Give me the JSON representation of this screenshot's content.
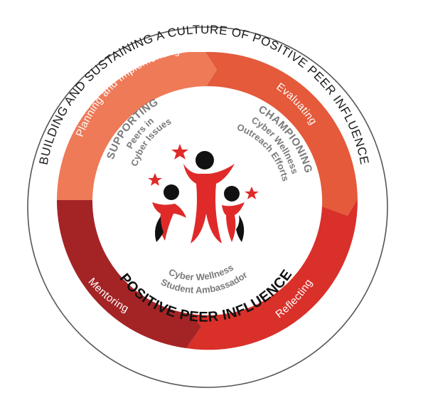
{
  "outer_ring": {
    "label": "BUILDING AND SUSTAINING A CULTURE OF POSITIVE PEER INFLUENCE"
  },
  "cycle": {
    "segments": [
      {
        "label": "Planning and Implementing",
        "color": "#EE7A58"
      },
      {
        "label": "Evaluating",
        "color": "#E45A3A"
      },
      {
        "label": "Reflecting",
        "color": "#D9302A"
      },
      {
        "label": "Mentoring",
        "color": "#A42426"
      }
    ]
  },
  "center": {
    "supporting": {
      "heading": "SUPPORTING",
      "lines": [
        "Peers in",
        "Cyber Issues"
      ]
    },
    "championing": {
      "heading": "CHAMPIONING",
      "lines": [
        "Cyber Wellness",
        "Outreach Efforts"
      ]
    },
    "ambassador": {
      "lines": [
        "Cyber Wellness",
        "Student Ambassador"
      ]
    },
    "title": "POSITIVE PEER INFLUENCE"
  },
  "logo": {
    "icon": "three-people-stars-logo",
    "colors": {
      "red": "#E02A2A",
      "black": "#111111"
    }
  }
}
